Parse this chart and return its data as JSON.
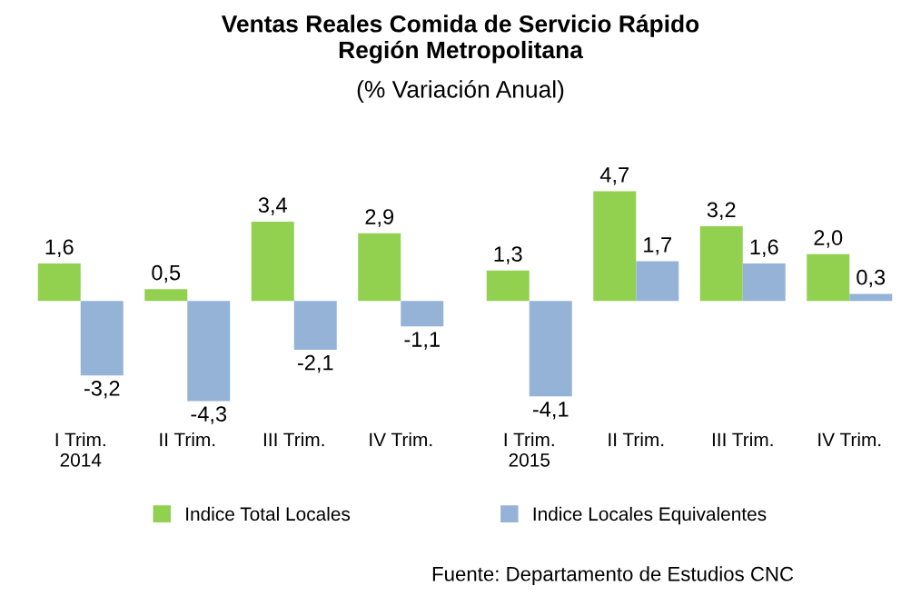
{
  "chart_data": [
    {
      "type": "bar",
      "title": "Ventas Reales Comida de Servicio Rápido\nRegión Metropolitana",
      "subtitle": "(% Variación Anual)",
      "categories": [
        "I Trim.\n2014",
        "II Trim.",
        "III Trim.",
        "IV Trim."
      ],
      "tick_labels": "x",
      "legend": "bottom",
      "grid": false,
      "series": [
        {
          "name": "Indice Total Locales",
          "color": "#92d050",
          "values": [
            1.6,
            0.5,
            3.4,
            2.9
          ],
          "value_labels": [
            "1,6",
            "0,5",
            "3,4",
            "2,9"
          ]
        },
        {
          "name": "Indice Locales Equivalentes",
          "color": "#95b3d7",
          "values": [
            -3.2,
            -4.3,
            -2.1,
            -1.1
          ],
          "value_labels": [
            "-3,2",
            "-4,3",
            "-2,1",
            "-1,1"
          ]
        }
      ]
    },
    {
      "type": "bar",
      "categories": [
        "I Trim.\n2015",
        "II Trim.",
        "III Trim.",
        "IV Trim."
      ],
      "tick_labels": "x",
      "grid": false,
      "annotations": [
        "Fuente: Departamento de Estudios CNC"
      ],
      "series": [
        {
          "color": "#92d050",
          "values": [
            1.3,
            4.7,
            3.2,
            2.0
          ],
          "value_labels": [
            "1,3",
            "4,7",
            "3,2",
            "2,0"
          ]
        },
        {
          "color": "#95b3d7",
          "values": [
            -4.1,
            1.7,
            1.6,
            0.3
          ],
          "value_labels": [
            "-4,1",
            "1,7",
            "1,6",
            "0,3"
          ]
        }
      ]
    }
  ]
}
